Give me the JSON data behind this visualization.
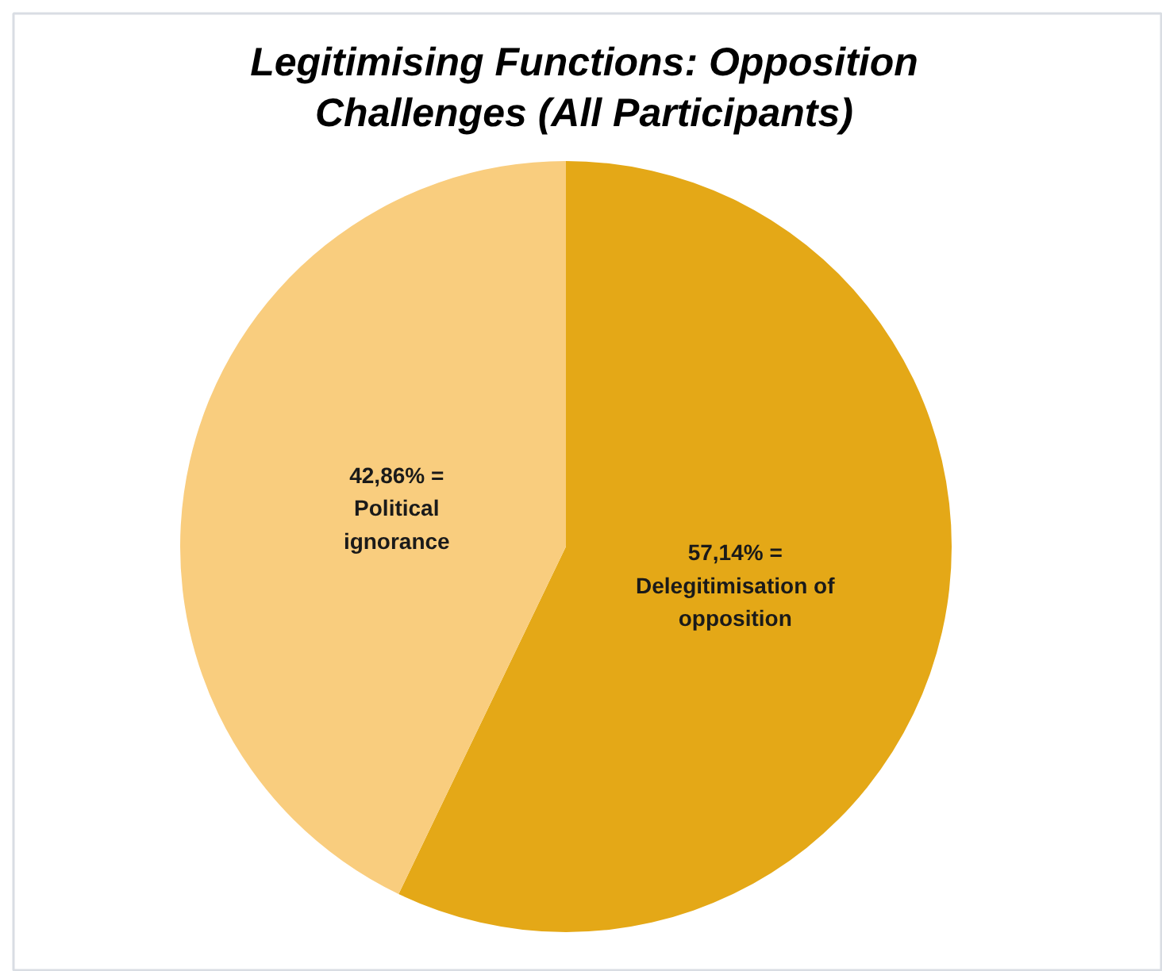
{
  "chart_data": {
    "type": "pie",
    "title": "Legitimising Functions: Opposition Challenges (All Participants)",
    "categories": [
      "Delegitimisation of opposition",
      "Political ignorance"
    ],
    "values": [
      57.14,
      42.86
    ],
    "colors": [
      "#e4a817",
      "#f9cd7e"
    ],
    "value_labels": [
      "57,14% =",
      "42,86% ="
    ]
  }
}
